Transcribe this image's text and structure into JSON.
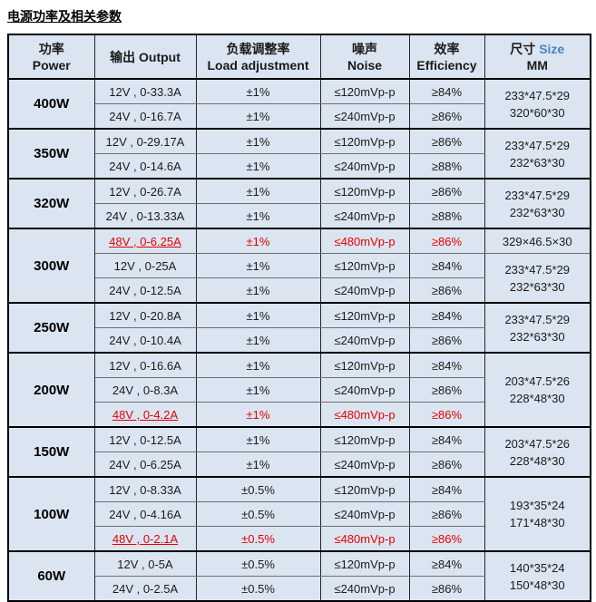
{
  "page_title": "电源功率及相关参数",
  "colors": {
    "accent_red": "#e60000",
    "size_header_blue": "#4f81bd",
    "table_background": "#dbe5f1",
    "border_black": "#000000"
  },
  "header": {
    "power_zh": "功率",
    "power_en": "Power",
    "output": "输出  Output",
    "load_zh": "负载调整率",
    "load_en": "Load adjustment",
    "noise_zh": "噪声",
    "noise_en": "Noise",
    "eff_zh": "效率",
    "eff_en": "Efficiency",
    "size_zh": "尺寸",
    "size_en": "Size",
    "size_unit": "MM"
  },
  "table": {
    "groups": [
      {
        "power": "400W",
        "rows": [
          {
            "output": "12V , 0-33.3A",
            "load": "±1%",
            "noise": "≤120mVp-p",
            "eff": "≥84%"
          },
          {
            "output": "24V , 0-16.7A",
            "load": "±1%",
            "noise": "≤240mVp-p",
            "eff": "≥86%"
          }
        ],
        "size": [
          "233*47.5*29",
          "320*60*30"
        ]
      },
      {
        "power": "350W",
        "rows": [
          {
            "output": "12V , 0-29.17A",
            "load": "±1%",
            "noise": "≤120mVp-p",
            "eff": "≥86%"
          },
          {
            "output": "24V , 0-14.6A",
            "load": "±1%",
            "noise": "≤240mVp-p",
            "eff": "≥88%"
          }
        ],
        "size": [
          "233*47.5*29",
          "232*63*30"
        ]
      },
      {
        "power": "320W",
        "rows": [
          {
            "output": "12V , 0-26.7A",
            "load": "±1%",
            "noise": "≤120mVp-p",
            "eff": "≥86%"
          },
          {
            "output": "24V , 0-13.33A",
            "load": "±1%",
            "noise": "≤240mVp-p",
            "eff": "≥88%"
          }
        ],
        "size": [
          "233*47.5*29",
          "232*63*30"
        ]
      },
      {
        "power": "300W",
        "rows": [
          {
            "output": "48V , 0-6.25A",
            "load": "±1%",
            "noise": "≤480mVp-p",
            "eff": "≥86%"
          },
          {
            "output": "12V , 0-25A",
            "load": "±1%",
            "noise": "≤120mVp-p",
            "eff": "≥84%"
          },
          {
            "output": "24V , 0-12.5A",
            "load": "±1%",
            "noise": "≤240mVp-p",
            "eff": "≥86%"
          }
        ],
        "size48": "329×46.5×30",
        "size": [
          "233*47.5*29",
          "232*63*30"
        ]
      },
      {
        "power": "250W",
        "rows": [
          {
            "output": "12V , 0-20.8A",
            "load": "±1%",
            "noise": "≤120mVp-p",
            "eff": "≥84%"
          },
          {
            "output": "24V , 0-10.4A",
            "load": "±1%",
            "noise": "≤240mVp-p",
            "eff": "≥86%"
          }
        ],
        "size": [
          "233*47.5*29",
          "232*63*30"
        ]
      },
      {
        "power": "200W",
        "rows": [
          {
            "output": "12V , 0-16.6A",
            "load": "±1%",
            "noise": "≤120mVp-p",
            "eff": "≥84%"
          },
          {
            "output": "24V , 0-8.3A",
            "load": "±1%",
            "noise": "≤240mVp-p",
            "eff": "≥86%"
          },
          {
            "output": "48V , 0-4.2A",
            "load": "±1%",
            "noise": "≤480mVp-p",
            "eff": "≥86%"
          }
        ],
        "size": [
          "203*47.5*26",
          "228*48*30"
        ]
      },
      {
        "power": "150W",
        "rows": [
          {
            "output": "12V , 0-12.5A",
            "load": "±1%",
            "noise": "≤120mVp-p",
            "eff": "≥84%"
          },
          {
            "output": "24V , 0-6.25A",
            "load": "±1%",
            "noise": "≤240mVp-p",
            "eff": "≥86%"
          }
        ],
        "size": [
          "203*47.5*26",
          "228*48*30"
        ]
      },
      {
        "power": "100W",
        "rows": [
          {
            "output": "12V , 0-8.33A",
            "load": "±0.5%",
            "noise": "≤120mVp-p",
            "eff": "≥84%"
          },
          {
            "output": "24V , 0-4.16A",
            "load": "±0.5%",
            "noise": "≤240mVp-p",
            "eff": "≥86%"
          },
          {
            "output": "48V , 0-2.1A",
            "load": "±0.5%",
            "noise": "≤480mVp-p",
            "eff": "≥86%"
          }
        ],
        "size": [
          "193*35*24",
          "171*48*30"
        ]
      },
      {
        "power": "60W",
        "rows": [
          {
            "output": "12V , 0-5A",
            "load": "±0.5%",
            "noise": "≤120mVp-p",
            "eff": "≥84%"
          },
          {
            "output": "24V , 0-2.5A",
            "load": "±0.5%",
            "noise": "≤240mVp-p",
            "eff": "≥86%"
          }
        ],
        "size": [
          "140*35*24",
          "150*48*30"
        ]
      }
    ]
  }
}
